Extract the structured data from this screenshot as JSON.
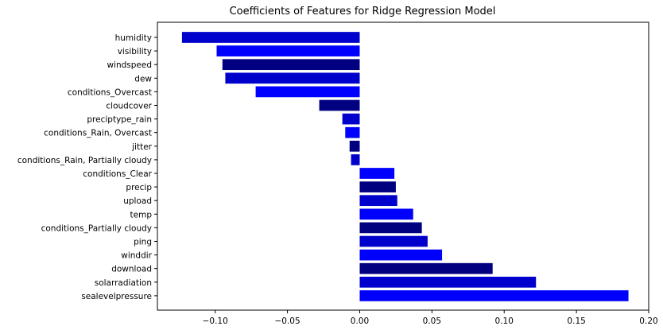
{
  "chart_data": {
    "type": "bar",
    "orientation": "horizontal",
    "title": "Coefficients of Features for Ridge Regression Model",
    "xlabel": "",
    "ylabel": "",
    "xlim": [
      -0.14,
      0.2
    ],
    "xticks": [
      -0.1,
      -0.05,
      0.0,
      0.05,
      0.1,
      0.15,
      0.2
    ],
    "xtick_labels": [
      "−0.10",
      "−0.05",
      "0.00",
      "0.05",
      "0.10",
      "0.15",
      "0.20"
    ],
    "grid": false,
    "categories": [
      "humidity",
      "visibility",
      "windspeed",
      "dew",
      "conditions_Overcast",
      "cloudcover",
      "preciptype_rain",
      "conditions_Rain, Overcast",
      "jitter",
      "conditions_Rain, Partially cloudy",
      "conditions_Clear",
      "precip",
      "upload",
      "temp",
      "conditions_Partially cloudy",
      "ping",
      "winddir",
      "download",
      "solarradiation",
      "sealevelpressure"
    ],
    "values": [
      -0.123,
      -0.099,
      -0.095,
      -0.093,
      -0.072,
      -0.028,
      -0.012,
      -0.01,
      -0.007,
      -0.006,
      0.024,
      0.025,
      0.026,
      0.037,
      0.043,
      0.047,
      0.057,
      0.092,
      0.122,
      0.186
    ],
    "bar_colors": [
      "#0000cd",
      "#0000ff",
      "#000080",
      "#0000cd",
      "#0000ff",
      "#000080",
      "#0000cd",
      "#0000ff",
      "#000080",
      "#0000cd",
      "#0000ff",
      "#000080",
      "#0000cd",
      "#0000ff",
      "#000080",
      "#0000cd",
      "#0000ff",
      "#000080",
      "#0000cd",
      "#0000ff"
    ]
  }
}
